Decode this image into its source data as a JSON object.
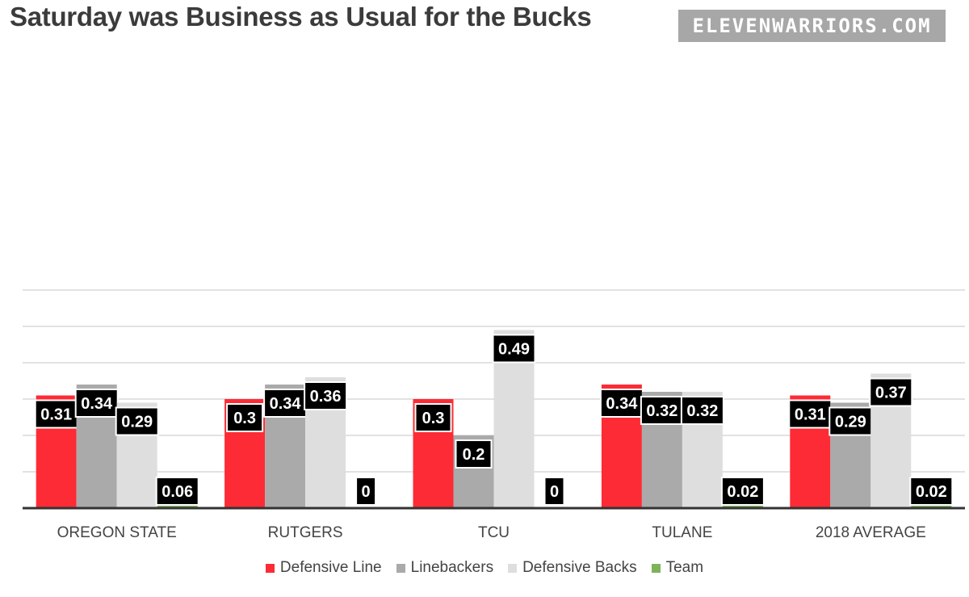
{
  "title": "Saturday was Business as Usual for the Bucks",
  "brand": "ELEVENWARRIORS.COM",
  "chart_data": {
    "type": "bar",
    "title": "Saturday was Business as Usual for the Bucks",
    "xlabel": "",
    "ylabel": "",
    "ylim": [
      0,
      0.6
    ],
    "grid": true,
    "legend_position": "bottom",
    "categories": [
      "OREGON STATE",
      "RUTGERS",
      "TCU",
      "TULANE",
      "2018 AVERAGE"
    ],
    "series": [
      {
        "name": "Defensive Line",
        "color": "#fd2b35",
        "values": [
          0.31,
          0.3,
          0.3,
          0.34,
          0.31
        ],
        "labels": [
          "0.31",
          "0.3",
          "0.3",
          "0.34",
          "0.31"
        ]
      },
      {
        "name": "Linebackers",
        "color": "#aaaaaa",
        "values": [
          0.34,
          0.34,
          0.2,
          0.32,
          0.29
        ],
        "labels": [
          "0.34",
          "0.34",
          "0.2",
          "0.32",
          "0.29"
        ]
      },
      {
        "name": "Defensive Backs",
        "color": "#dedede",
        "values": [
          0.29,
          0.36,
          0.49,
          0.32,
          0.37
        ],
        "labels": [
          "0.29",
          "0.36",
          "0.49",
          "0.32",
          "0.37"
        ]
      },
      {
        "name": "Team",
        "color": "#7eb35c",
        "values": [
          0.06,
          0,
          0,
          0.02,
          0.02
        ],
        "labels": [
          "0.06",
          "0",
          "0",
          "0.02",
          "0.02"
        ]
      }
    ]
  }
}
